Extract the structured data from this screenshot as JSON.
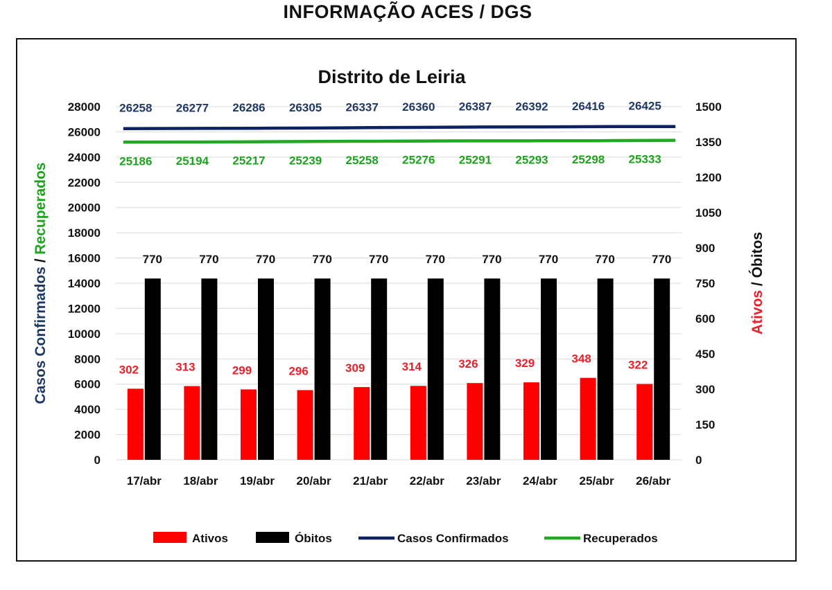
{
  "header": {
    "title": "INFORMAÇÃO ACES / DGS"
  },
  "chart_data": {
    "type": "bar",
    "title": "Distrito de Leiria",
    "categories": [
      "17/abr",
      "18/abr",
      "19/abr",
      "20/abr",
      "21/abr",
      "22/abr",
      "23/abr",
      "24/abr",
      "25/abr",
      "26/abr"
    ],
    "left_axis": {
      "label_part1": "Casos Confirmados",
      "label_sep": " / ",
      "label_part2": "Recuperados",
      "label_part1_color": "#1f3864",
      "label_part2_color": "#1ea31e",
      "ylim": [
        0,
        28000
      ],
      "ticks": [
        0,
        2000,
        4000,
        6000,
        8000,
        10000,
        12000,
        14000,
        16000,
        18000,
        20000,
        22000,
        24000,
        26000,
        28000
      ]
    },
    "right_axis": {
      "label_part1": "Ativos",
      "label_sep": " / ",
      "label_part2": "Óbitos",
      "label_part1_color": "#e8202a",
      "label_part2_color": "#111111",
      "ylim": [
        0,
        1500
      ],
      "ticks": [
        0,
        150,
        300,
        450,
        600,
        750,
        900,
        1050,
        1200,
        1350,
        1500
      ]
    },
    "series": [
      {
        "name": "Ativos",
        "type": "bar",
        "axis": "right",
        "color": "#ff0000",
        "label_color": "#e8202a",
        "values": [
          302,
          313,
          299,
          296,
          309,
          314,
          326,
          329,
          348,
          322
        ]
      },
      {
        "name": "Óbitos",
        "type": "bar",
        "axis": "right",
        "color": "#000000",
        "label_color": "#111111",
        "values": [
          770,
          770,
          770,
          770,
          770,
          770,
          770,
          770,
          770,
          770
        ]
      },
      {
        "name": "Casos Confirmados",
        "type": "line",
        "axis": "left",
        "color": "#0d2260",
        "label_color": "#1f3864",
        "values": [
          26258,
          26277,
          26286,
          26305,
          26337,
          26360,
          26387,
          26392,
          26416,
          26425
        ]
      },
      {
        "name": "Recuperados",
        "type": "line",
        "axis": "left",
        "color": "#22a822",
        "label_color": "#1ea31e",
        "values": [
          25186,
          25194,
          25217,
          25239,
          25258,
          25276,
          25291,
          25293,
          25298,
          25333
        ]
      }
    ],
    "grid": true,
    "legend_position": "bottom"
  }
}
